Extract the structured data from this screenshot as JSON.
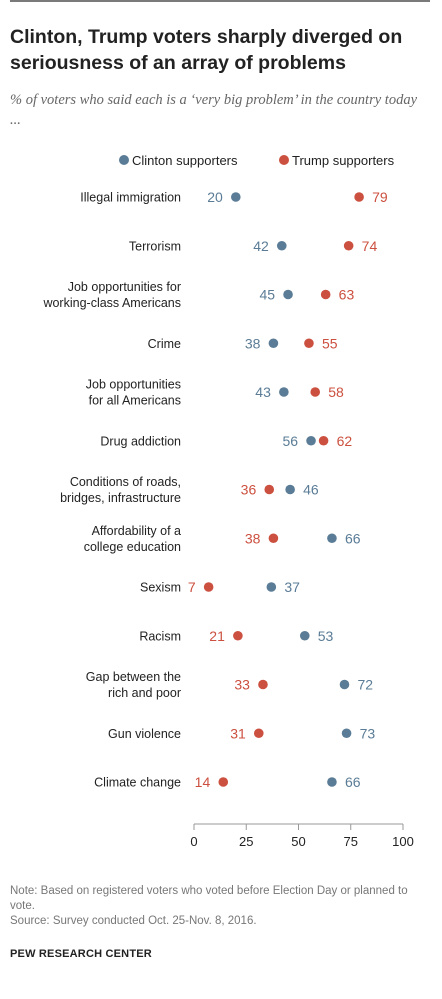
{
  "title": "Clinton, Trump voters sharply diverged on seriousness of an array of problems",
  "subtitle": "% of voters who said each is a ‘very big problem’ in the country today ...",
  "notes": [
    "Note: Based on registered voters who voted before Election Day or planned to vote.",
    "Source: Survey conducted Oct. 25-Nov. 8, 2016."
  ],
  "footer": "PEW RESEARCH CENTER",
  "colors": {
    "clinton": "#5a7c96",
    "trump": "#cc503f",
    "axis": "#999999",
    "text": "#222222"
  },
  "chart_data": {
    "type": "scatter",
    "title": "Clinton, Trump voters sharply diverged on seriousness of an array of problems",
    "xlabel": "",
    "ylabel": "",
    "xlim": [
      0,
      100
    ],
    "xticks": [
      0,
      25,
      50,
      75,
      100
    ],
    "grid": false,
    "legend": "top",
    "categories": [
      [
        "Illegal immigration"
      ],
      [
        "Terrorism"
      ],
      [
        "Job opportunities for",
        "working-class Americans"
      ],
      [
        "Crime"
      ],
      [
        "Job opportunities",
        "for all Americans"
      ],
      [
        "Drug addiction"
      ],
      [
        "Conditions of roads,",
        "bridges, infrastructure"
      ],
      [
        "Affordability of a",
        "college education"
      ],
      [
        "Sexism"
      ],
      [
        "Racism"
      ],
      [
        "Gap between the",
        "rich and poor"
      ],
      [
        "Gun violence"
      ],
      [
        "Climate change"
      ]
    ],
    "series": [
      {
        "name": "Clinton supporters",
        "key": "clinton",
        "values": [
          20,
          42,
          45,
          38,
          43,
          56,
          46,
          66,
          37,
          53,
          72,
          73,
          66
        ]
      },
      {
        "name": "Trump supporters",
        "key": "trump",
        "values": [
          79,
          74,
          63,
          55,
          58,
          62,
          36,
          38,
          7,
          21,
          33,
          31,
          14
        ]
      }
    ]
  }
}
